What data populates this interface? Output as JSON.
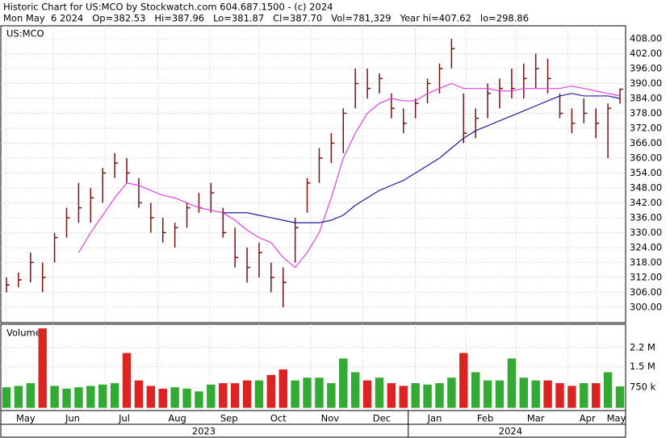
{
  "header": {
    "line1": "Historic Chart for US:MCO by Stockwatch.com 604.687.1500 - (c) 2024",
    "line2": "Mon May  6 2024   Op=382.53   Hi=387.96   Lo=381.87   Cl=387.70   Vol=781,329   Year hi=407.62   lo=298.86"
  },
  "chart_data": {
    "type": "ohlc",
    "title": "US:MCO",
    "volume_label": "Volume",
    "high": [
      312,
      314,
      322,
      318,
      330,
      340,
      350,
      348,
      356,
      362,
      360,
      352,
      342,
      336,
      334,
      342,
      346,
      350,
      340,
      332,
      324,
      326,
      318,
      316,
      336,
      352,
      364,
      370,
      380,
      396,
      396,
      394,
      386,
      380,
      384,
      392,
      398,
      408,
      386,
      380,
      390,
      392,
      396,
      398,
      402,
      400,
      386,
      380,
      384,
      380,
      382,
      387.96
    ],
    "low": [
      306,
      308,
      310,
      306,
      318,
      328,
      334,
      334,
      342,
      352,
      350,
      340,
      330,
      326,
      324,
      332,
      338,
      338,
      328,
      316,
      310,
      312,
      306,
      300,
      318,
      338,
      350,
      358,
      362,
      380,
      384,
      386,
      376,
      370,
      376,
      382,
      386,
      396,
      366,
      368,
      376,
      380,
      384,
      384,
      388,
      386,
      376,
      370,
      374,
      368,
      360,
      381.87
    ],
    "close": [
      309,
      311,
      318,
      312,
      328,
      336,
      340,
      344,
      354,
      358,
      354,
      342,
      336,
      330,
      332,
      340,
      340,
      346,
      330,
      320,
      316,
      322,
      312,
      310,
      332,
      350,
      360,
      366,
      378,
      390,
      388,
      392,
      380,
      374,
      382,
      390,
      396,
      404,
      370,
      376,
      386,
      388,
      388,
      392,
      396,
      392,
      378,
      374,
      378,
      374,
      380,
      387.7
    ],
    "volume": [
      750000,
      800000,
      900000,
      2900000,
      800000,
      700000,
      750000,
      800000,
      850000,
      900000,
      2000000,
      1000000,
      800000,
      700000,
      750000,
      700000,
      600000,
      850000,
      900000,
      900000,
      1000000,
      1000000,
      1200000,
      1400000,
      1000000,
      1100000,
      1100000,
      900000,
      1800000,
      1300000,
      1000000,
      1100000,
      900000,
      800000,
      900000,
      850000,
      900000,
      1100000,
      2000000,
      1300000,
      1000000,
      1000000,
      1800000,
      1100000,
      1000000,
      1000000,
      900000,
      800000,
      900000,
      900000,
      1300000,
      781329
    ],
    "ma_short": [
      null,
      null,
      null,
      null,
      null,
      null,
      322,
      330,
      337,
      344,
      350,
      349,
      347,
      345,
      344,
      342,
      340,
      339,
      338,
      335,
      331,
      328,
      326,
      320,
      316,
      322,
      330,
      344,
      360,
      370,
      378,
      382,
      384,
      383,
      383,
      386,
      388,
      390,
      388,
      388,
      388,
      387,
      387,
      388,
      388,
      388,
      388,
      389,
      388,
      387,
      386,
      385
    ],
    "ma_long": [
      null,
      null,
      null,
      null,
      null,
      null,
      null,
      null,
      null,
      null,
      null,
      null,
      null,
      null,
      null,
      null,
      null,
      null,
      338,
      338,
      338,
      337,
      336,
      335,
      334,
      334,
      334,
      335,
      337,
      341,
      344,
      347,
      349,
      351,
      354,
      357,
      360,
      364,
      368,
      371,
      373,
      375,
      377,
      379,
      381,
      383,
      385,
      386,
      385,
      385,
      385,
      384
    ],
    "ma_short_color": "#e040e0",
    "ma_long_color": "#1c1ca0",
    "bar_color": "#7a1010",
    "up_color": "#33aa33",
    "down_color": "#dd2222",
    "xlim": [
      0,
      51
    ],
    "xticks": [
      {
        "value": 1.6,
        "label": "May"
      },
      {
        "value": 5.5,
        "label": "Jun"
      },
      {
        "value": 9.8,
        "label": "Jul"
      },
      {
        "value": 14.2,
        "label": "Aug"
      },
      {
        "value": 18.5,
        "label": "Sep"
      },
      {
        "value": 22.6,
        "label": "Oct"
      },
      {
        "value": 26.9,
        "label": "Nov"
      },
      {
        "value": 31.2,
        "label": "Dec"
      },
      {
        "value": 35.6,
        "label": "Jan"
      },
      {
        "value": 39.8,
        "label": "Feb"
      },
      {
        "value": 44.0,
        "label": "Mar"
      },
      {
        "value": 48.3,
        "label": "Apr"
      },
      {
        "value": 50.7,
        "label": "May"
      }
    ],
    "years": [
      {
        "value": 16.4,
        "label": "2023"
      },
      {
        "value": 41.9,
        "label": "2024"
      }
    ],
    "year_divider": 33.4,
    "ylim": [
      293.8,
      413.2
    ],
    "yticks": [
      {
        "value": 300,
        "label": "300.00"
      },
      {
        "value": 306,
        "label": "306.00"
      },
      {
        "value": 312,
        "label": "312.00"
      },
      {
        "value": 318,
        "label": "318.00"
      },
      {
        "value": 324,
        "label": "324.00"
      },
      {
        "value": 330,
        "label": "330.00"
      },
      {
        "value": 336,
        "label": "336.00"
      },
      {
        "value": 342,
        "label": "342.00"
      },
      {
        "value": 348,
        "label": "348.00"
      },
      {
        "value": 354,
        "label": "354.00"
      },
      {
        "value": 360,
        "label": "360.00"
      },
      {
        "value": 366,
        "label": "366.00"
      },
      {
        "value": 372,
        "label": "372.00"
      },
      {
        "value": 378,
        "label": "378.00"
      },
      {
        "value": 384,
        "label": "384.00"
      },
      {
        "value": 390,
        "label": "390.00"
      },
      {
        "value": 396,
        "label": "396.00"
      },
      {
        "value": 402,
        "label": "402.00"
      },
      {
        "value": 408,
        "label": "408.00"
      }
    ],
    "vlim": [
      -100000,
      3050000
    ],
    "vticks": [
      {
        "value": 750000,
        "label": "750 k"
      },
      {
        "value": 1500000,
        "label": "1.5 M"
      },
      {
        "value": 2200000,
        "label": "2.2 M"
      }
    ],
    "grid": true
  }
}
